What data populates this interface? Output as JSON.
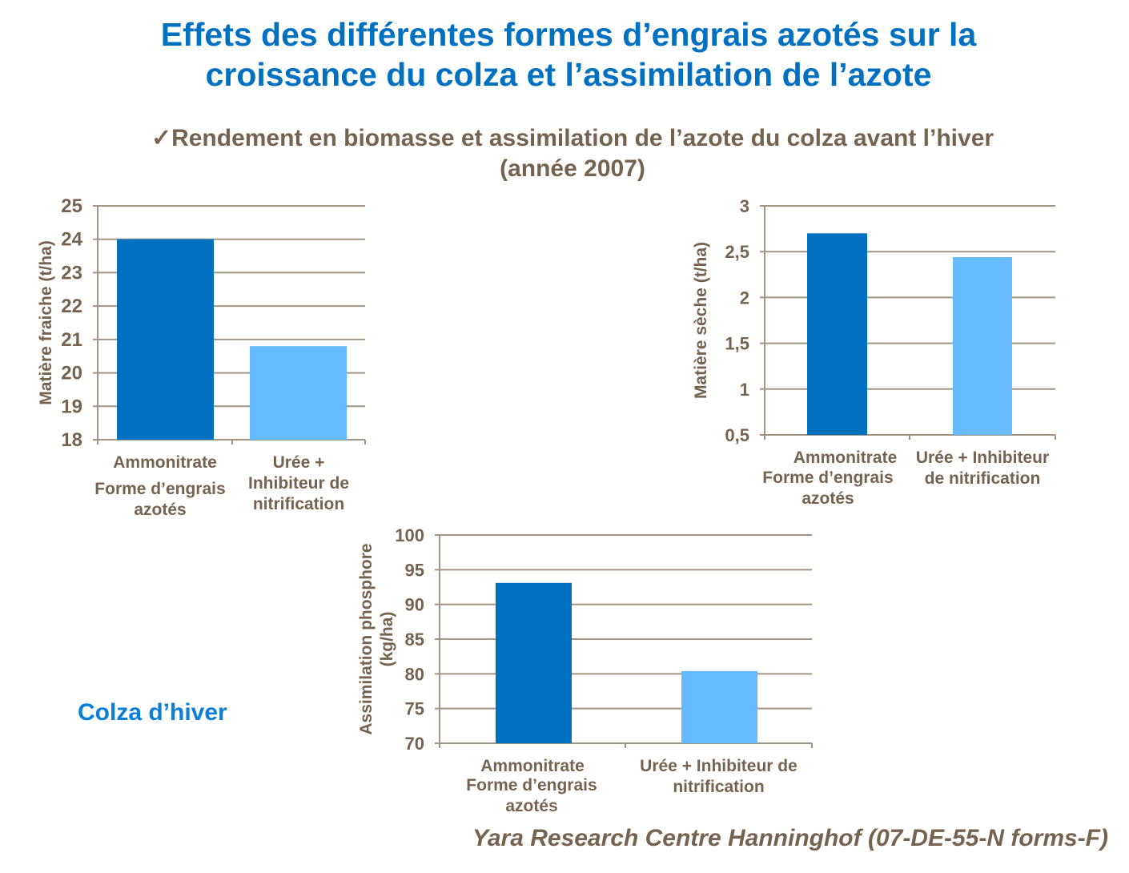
{
  "title_lines": [
    "Effets des différentes formes d’engrais azotés sur la",
    "croissance du colza et l’assimilation de l’azote"
  ],
  "subtitle_lines": [
    "✓Rendement en biomasse et assimilation de l’azote du colza avant l’hiver",
    "(année 2007)"
  ],
  "side_label": "Colza d’hiver",
  "source": "Yara Research Centre Hanninghof (07-DE-55-N forms-F)",
  "colors": {
    "title": "#0070C0",
    "text": "#76634F",
    "bar_1": "#0070C0",
    "bar_2": "#66BBFF",
    "grid": "#A09585"
  },
  "chart_data": [
    {
      "type": "bar",
      "categories": [
        [
          "Ammonitrate"
        ],
        [
          "Urée +",
          "Inhibiteur de",
          "nitrification"
        ]
      ],
      "values": [
        24.0,
        20.8
      ],
      "xlabel": "Forme d’engrais azotés",
      "ylabel": [
        "Matière fraiche (t/ha)"
      ],
      "ylim": [
        18,
        25
      ],
      "yticks": [
        "18",
        "19",
        "20",
        "21",
        "22",
        "23",
        "24",
        "25"
      ],
      "grid": true
    },
    {
      "type": "bar",
      "categories": [
        [
          "Ammonitrate"
        ],
        [
          "Urée + Inhibiteur",
          "de nitrification"
        ]
      ],
      "values": [
        2.7,
        2.44
      ],
      "xlabel": "Forme d’engrais azotés",
      "ylabel": [
        "Matière sèche (t/ha)"
      ],
      "ylim": [
        0.5,
        3
      ],
      "yticks": [
        "0,5",
        "1",
        "1,5",
        "2",
        "2,5",
        "3"
      ],
      "grid": true
    },
    {
      "type": "bar",
      "categories": [
        [
          "Ammonitrate"
        ],
        [
          "Urée + Inhibiteur de",
          "nitrification"
        ]
      ],
      "values": [
        93.1,
        80.4
      ],
      "xlabel": "Forme d’engrais azotés",
      "ylabel": [
        "Assimilation phosphore",
        "(kg/ha)"
      ],
      "ylim": [
        70,
        100
      ],
      "yticks": [
        "70",
        "75",
        "80",
        "85",
        "90",
        "95",
        "100"
      ],
      "grid": true
    }
  ]
}
